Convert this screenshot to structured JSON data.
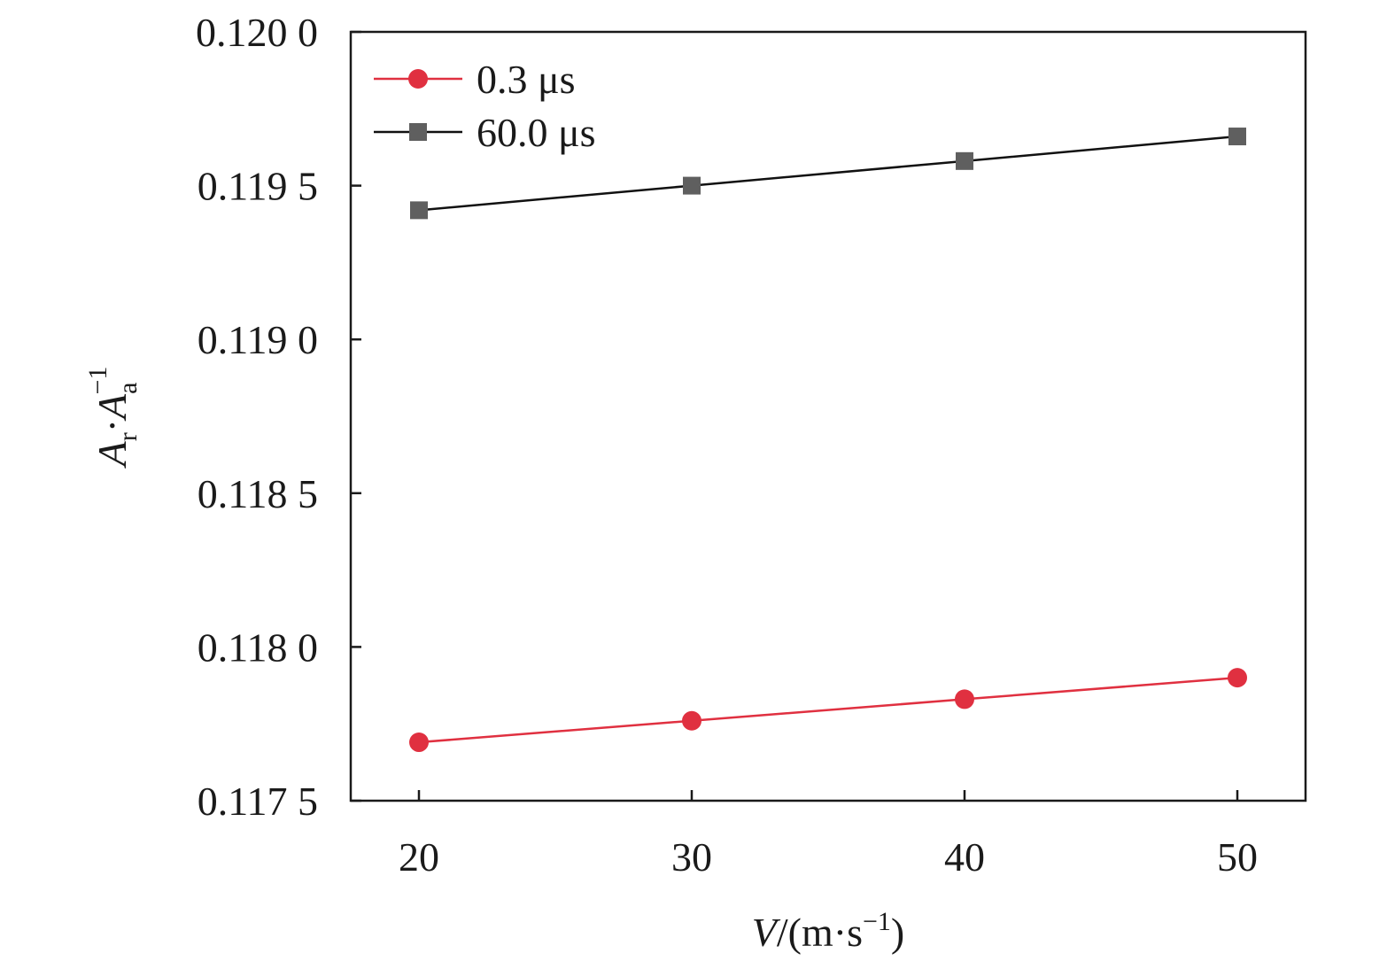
{
  "chart_data": {
    "type": "line",
    "x": [
      20,
      30,
      40,
      50
    ],
    "x_tick_labels": [
      "20",
      "30",
      "40",
      "50"
    ],
    "xlim": [
      17.5,
      52.5
    ],
    "ylim": [
      0.1175,
      0.12
    ],
    "y_ticks": [
      0.1175,
      0.118,
      0.1185,
      0.119,
      0.1195,
      0.12
    ],
    "y_tick_labels": [
      "0.117 5",
      "0.118 0",
      "0.118 5",
      "0.119 0",
      "0.119 5",
      "0.120 0"
    ],
    "xlabel": {
      "italic": "V",
      "text": "/(m·s",
      "sup": "−1",
      "close": ")"
    },
    "ylabel": {
      "A1": "A",
      "sub1": "r",
      "dot": "·",
      "A2": "A",
      "sub2": "a",
      "sup": "−1"
    },
    "grid": false,
    "legend_position": "top-left",
    "series": [
      {
        "name": "0.3 μs",
        "values": [
          0.11769,
          0.11776,
          0.11783,
          0.1179
        ],
        "color": "#e03040",
        "marker": "circle"
      },
      {
        "name": "60.0 μs",
        "values": [
          0.11942,
          0.1195,
          0.11958,
          0.11966
        ],
        "color": "#111111",
        "marker_color": "#5f5f5f",
        "marker": "square"
      }
    ]
  }
}
